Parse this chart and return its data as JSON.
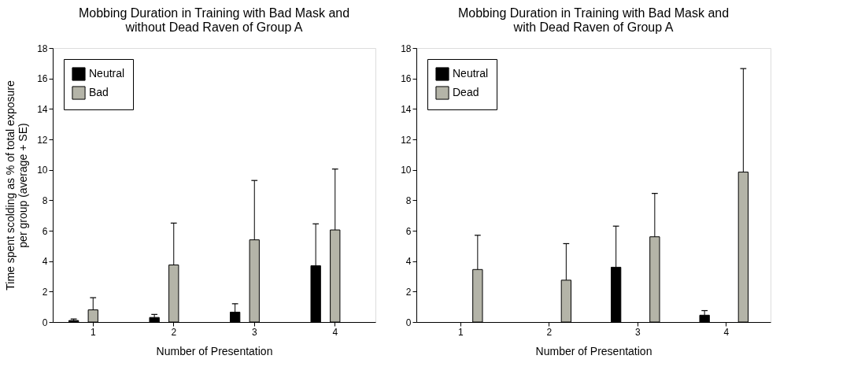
{
  "chart_data": [
    {
      "type": "bar",
      "title": "Mobbing Duration in Training with Bad Mask and without Dead Raven of Group A",
      "xlabel": "Number of Presentation",
      "ylabel": "Time spent scolding as % of total exposure per group (average + SE)",
      "categories": [
        "1",
        "2",
        "3",
        "4"
      ],
      "ylim": [
        0,
        18
      ],
      "yticks": [
        0,
        2,
        4,
        6,
        8,
        10,
        12,
        14,
        16,
        18
      ],
      "grid": false,
      "legend": "top left",
      "series": [
        {
          "name": "Neutral",
          "color": "#000000",
          "values": [
            0.1,
            0.3,
            0.65,
            3.7
          ],
          "errors": [
            [
              0.1,
              0.2
            ],
            [
              0.3,
              0.5
            ],
            [
              0.65,
              1.2
            ],
            [
              3.7,
              6.45
            ]
          ]
        },
        {
          "name": "Bad",
          "color": "#b4b4a8",
          "values": [
            0.8,
            3.75,
            5.4,
            6.05
          ],
          "errors": [
            [
              0.8,
              1.6
            ],
            [
              3.75,
              6.5
            ],
            [
              5.4,
              9.3
            ],
            [
              6.05,
              10.05
            ]
          ]
        }
      ]
    },
    {
      "type": "bar",
      "title": "Mobbing Duration in Training with Bad Mask and with Dead Raven of Group A",
      "xlabel": "Number of Presentation",
      "categories": [
        "1",
        "2",
        "3",
        "4"
      ],
      "ylim": [
        0,
        18
      ],
      "yticks": [
        0,
        2,
        4,
        6,
        8,
        10,
        12,
        14,
        16,
        18
      ],
      "grid": false,
      "legend": "top left",
      "series": [
        {
          "name": "Neutral",
          "color": "#000000",
          "values": [
            null,
            null,
            3.6,
            0.45
          ],
          "errors": [
            null,
            null,
            [
              3.6,
              6.3
            ],
            [
              0.45,
              0.75
            ]
          ]
        },
        {
          "name": "Dead",
          "color": "#b4b4a8",
          "values": [
            3.45,
            2.75,
            5.6,
            9.85
          ],
          "errors": [
            [
              3.45,
              5.7
            ],
            [
              2.75,
              5.15
            ],
            [
              5.6,
              8.45
            ],
            [
              9.85,
              16.65
            ]
          ]
        }
      ]
    }
  ]
}
